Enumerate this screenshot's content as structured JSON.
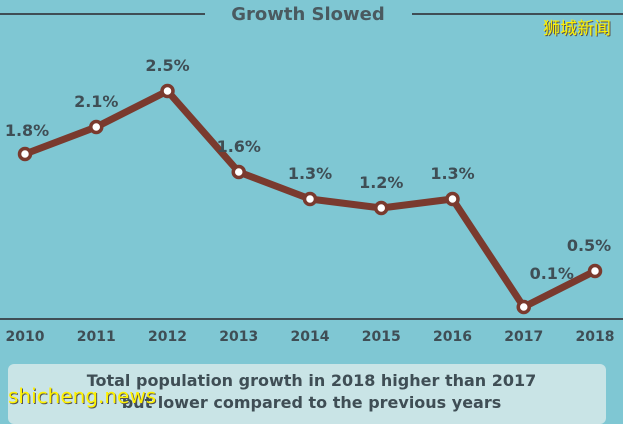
{
  "chart_data": {
    "type": "line",
    "title": "Growth Slowed",
    "x": [
      "2010",
      "2011",
      "2012",
      "2013",
      "2014",
      "2015",
      "2016",
      "2017",
      "2018"
    ],
    "values": [
      1.8,
      2.1,
      2.5,
      1.6,
      1.3,
      1.2,
      1.3,
      0.1,
      0.5
    ],
    "data_labels": [
      "1.8%",
      "2.1%",
      "2.5%",
      "1.6%",
      "1.3%",
      "1.2%",
      "1.3%",
      "0.1%",
      "0.5%"
    ],
    "ylim": [
      0,
      2.6
    ],
    "grid": false,
    "line_color": "#7a3a2e",
    "marker_fill": "#ffffff"
  },
  "caption": {
    "line1": "Total population growth in 2018 higher than 2017",
    "line2": "but lower compared to the previous years"
  },
  "watermarks": {
    "cn": "狮城新闻",
    "en": "shicheng.news"
  },
  "colors": {
    "background": "#7fc7d3",
    "rule": "#3f4e55",
    "text": "#3f4e55"
  }
}
